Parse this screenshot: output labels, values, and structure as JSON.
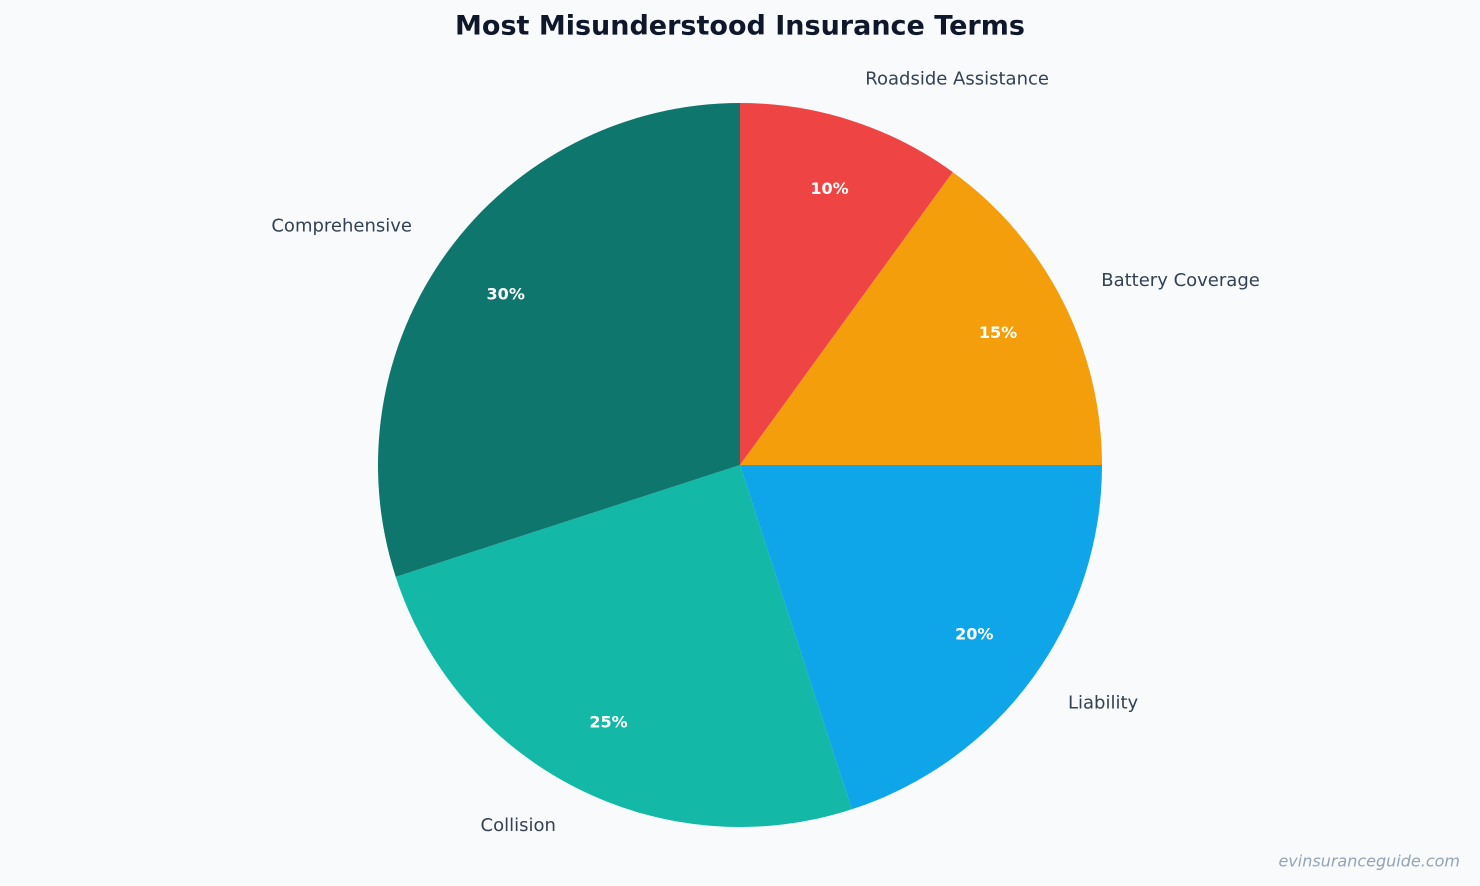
{
  "chart_data": {
    "type": "pie",
    "title": "Most Misunderstood Insurance Terms",
    "categories": [
      "Roadside Assistance",
      "Battery Coverage",
      "Liability",
      "Collision",
      "Comprehensive"
    ],
    "values": [
      10,
      15,
      20,
      25,
      30
    ],
    "value_labels": [
      "10%",
      "15%",
      "20%",
      "25%",
      "30%"
    ],
    "colors": [
      "#ef4444",
      "#f59e0b",
      "#0ea5e9",
      "#14b8a6",
      "#0f766e"
    ]
  },
  "watermark": "evinsuranceguide.com"
}
